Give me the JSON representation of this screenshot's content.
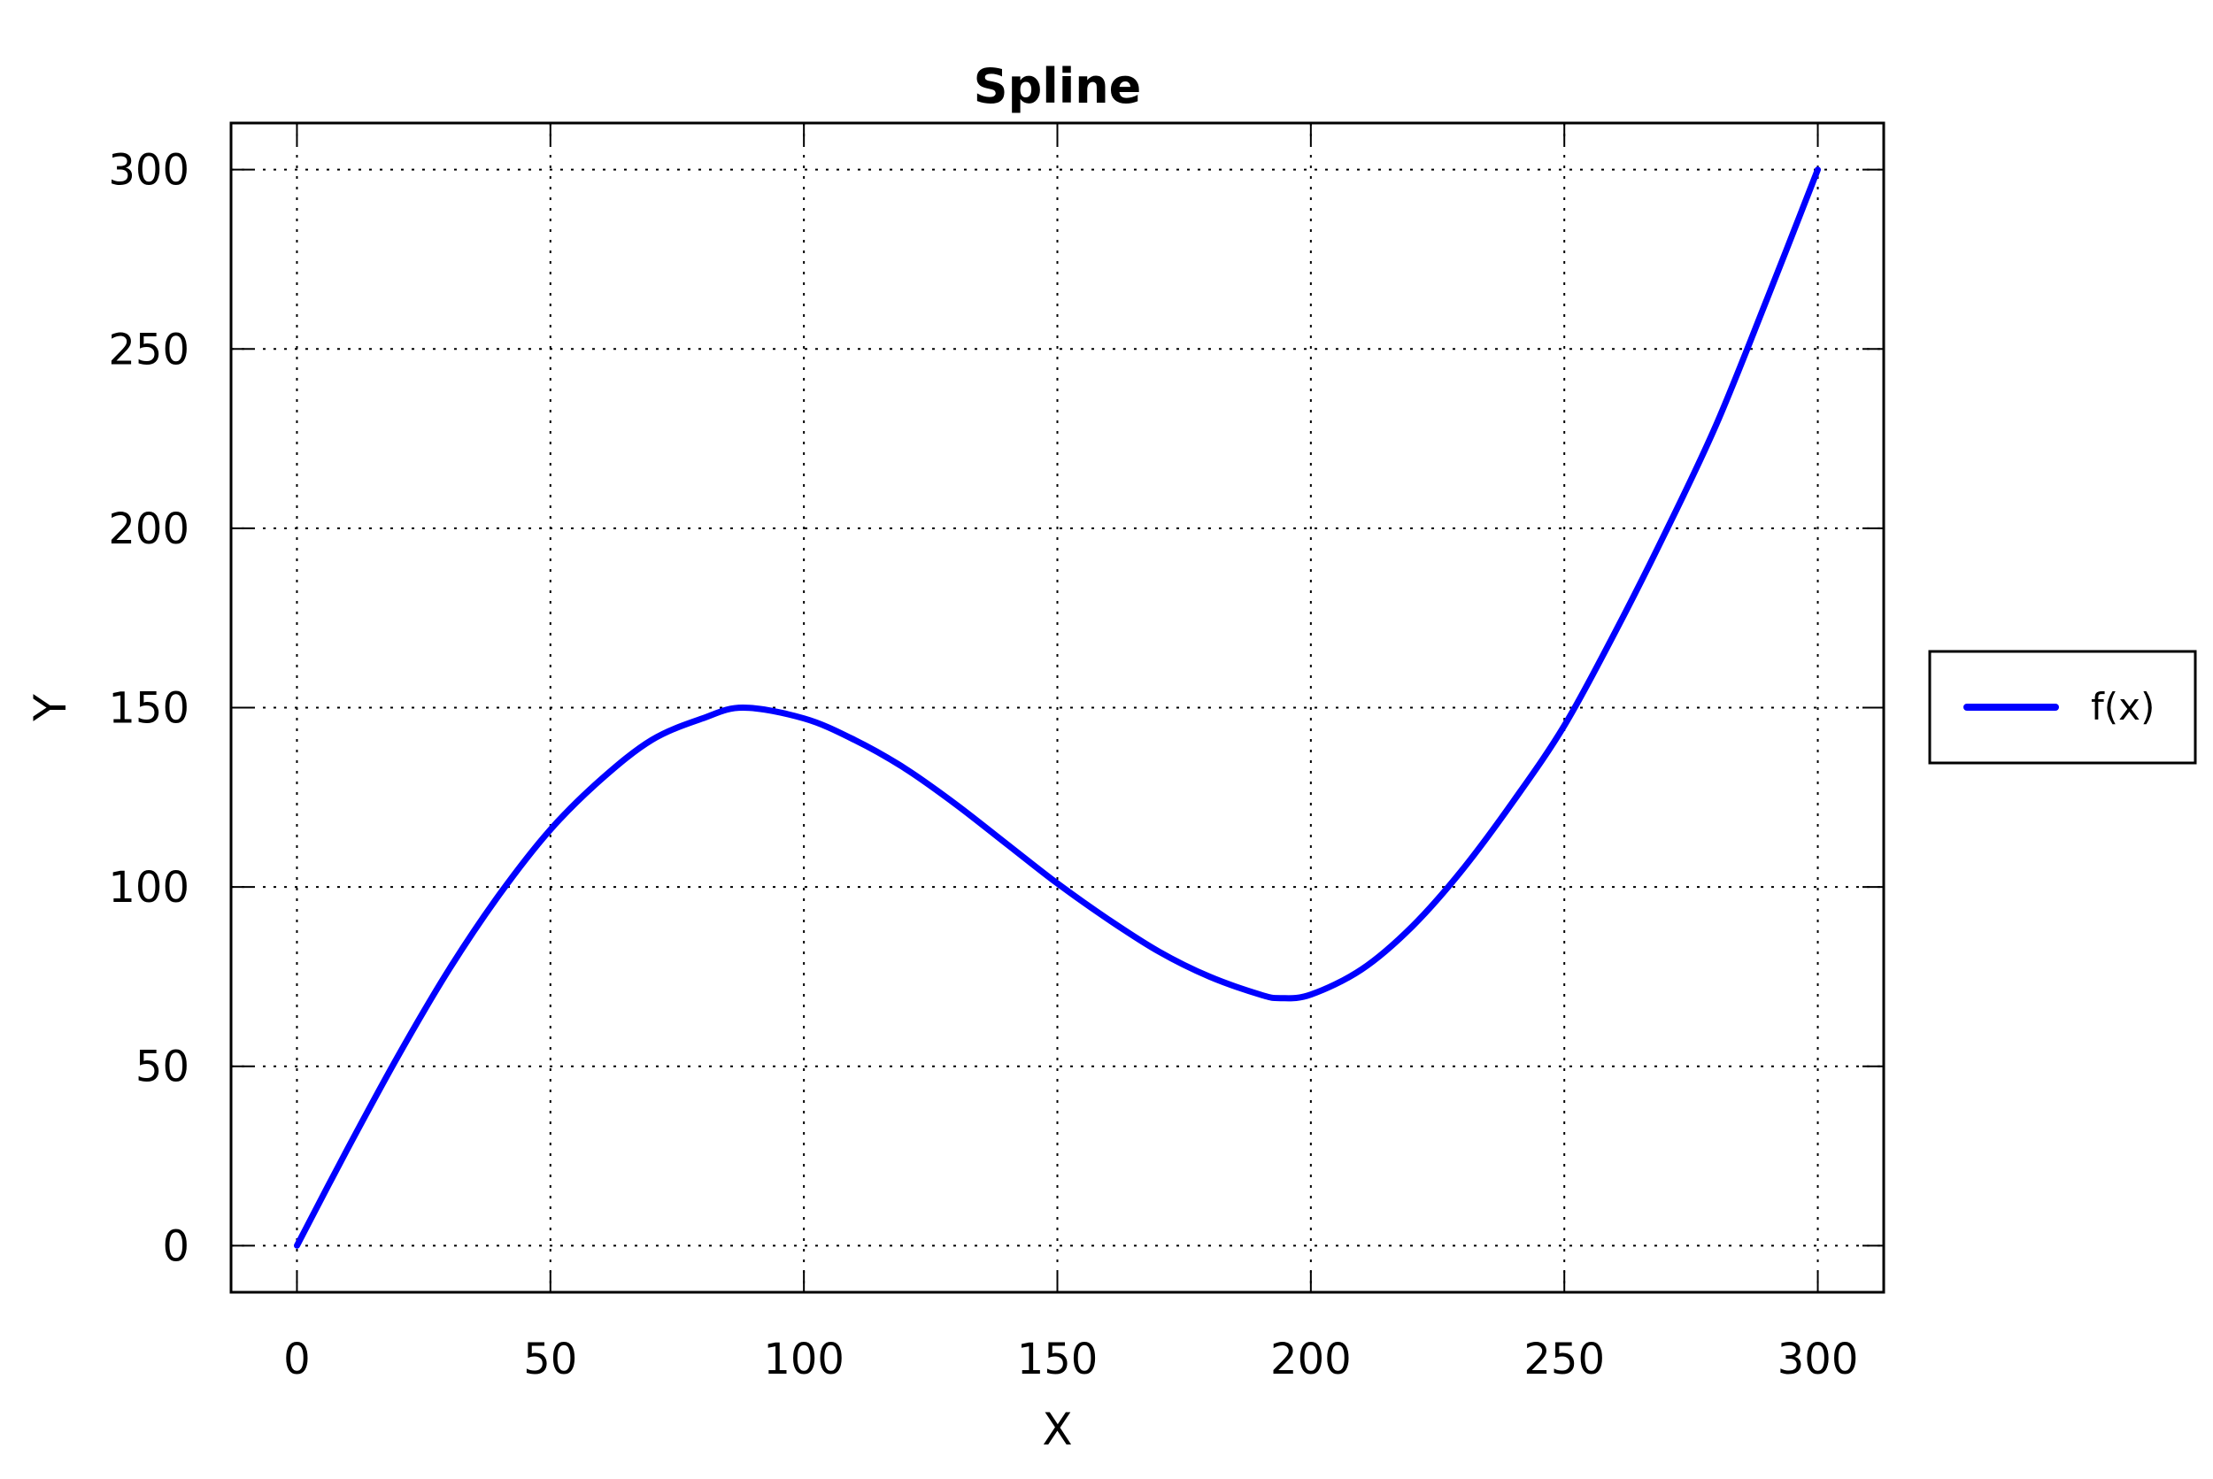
{
  "chart_data": {
    "type": "line",
    "title": "Spline",
    "xlabel": "X",
    "ylabel": "Y",
    "xlim": [
      -13,
      313
    ],
    "ylim": [
      -13,
      313
    ],
    "xticks": [
      0,
      50,
      100,
      150,
      200,
      250,
      300
    ],
    "yticks": [
      0,
      50,
      100,
      150,
      200,
      250,
      300
    ],
    "grid": true,
    "legend_position": "right",
    "series": [
      {
        "name": "f(x)",
        "color": "#0000ff",
        "x": [
          0,
          10,
          20,
          30,
          40,
          50,
          60,
          70,
          80,
          88,
          100,
          110,
          120,
          130,
          140,
          150,
          160,
          170,
          180,
          190,
          194,
          200,
          210,
          220,
          230,
          240,
          250,
          260,
          270,
          280,
          290,
          300
        ],
        "y": [
          0,
          27,
          53,
          77,
          98,
          116,
          130,
          141,
          147,
          150,
          147,
          141,
          133,
          123,
          112,
          101,
          91,
          82,
          75,
          70,
          69,
          70,
          77,
          89,
          105,
          124,
          145,
          171,
          199,
          229,
          264,
          300
        ]
      }
    ]
  }
}
